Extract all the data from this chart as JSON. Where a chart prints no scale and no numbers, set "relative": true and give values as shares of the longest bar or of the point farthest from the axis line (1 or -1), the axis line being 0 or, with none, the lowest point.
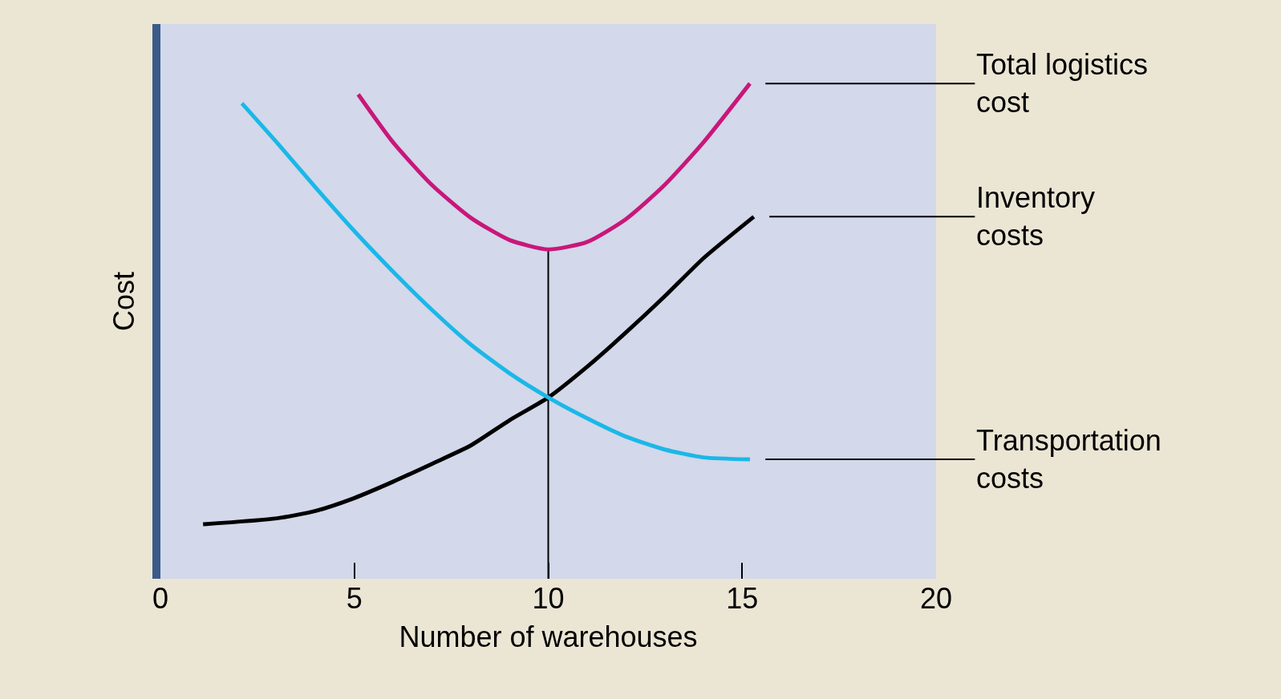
{
  "chart_data": {
    "type": "line",
    "relative": true,
    "xlabel": "Number of warehouses",
    "ylabel": "Cost",
    "xlim": [
      0,
      20
    ],
    "xticks": [
      0,
      5,
      10,
      15,
      20
    ],
    "legend": false,
    "grid": false,
    "marker": "none",
    "line_style": "solid",
    "series": [
      {
        "name": "Total logistics\ncost",
        "color": "#c8177a",
        "x": [
          5.1,
          6,
          7,
          8,
          9,
          10,
          11,
          12,
          13,
          14,
          15.2
        ],
        "values": [
          0.978,
          0.881,
          0.795,
          0.729,
          0.684,
          0.665,
          0.68,
          0.726,
          0.795,
          0.881,
          1.0
        ]
      },
      {
        "name": "Inventory\ncosts",
        "color": "#000000",
        "x": [
          1.1,
          3,
          4,
          5,
          6,
          7,
          8,
          9,
          10,
          11,
          12,
          13,
          14,
          15.3
        ],
        "values": [
          0.11,
          0.122,
          0.137,
          0.163,
          0.196,
          0.232,
          0.269,
          0.32,
          0.366,
          0.428,
          0.497,
          0.57,
          0.647,
          0.731
        ]
      },
      {
        "name": "Transportation\ncosts",
        "color": "#1ab8e8",
        "x": [
          2.1,
          3,
          4,
          5,
          6,
          7,
          8,
          9,
          10,
          11,
          12,
          13,
          14,
          15.2
        ],
        "values": [
          0.96,
          0.881,
          0.79,
          0.702,
          0.62,
          0.543,
          0.473,
          0.415,
          0.366,
          0.324,
          0.287,
          0.261,
          0.245,
          0.241
        ]
      }
    ],
    "ref_lines": [
      {
        "axis": "x",
        "value": 10,
        "color": "#000000"
      }
    ]
  }
}
